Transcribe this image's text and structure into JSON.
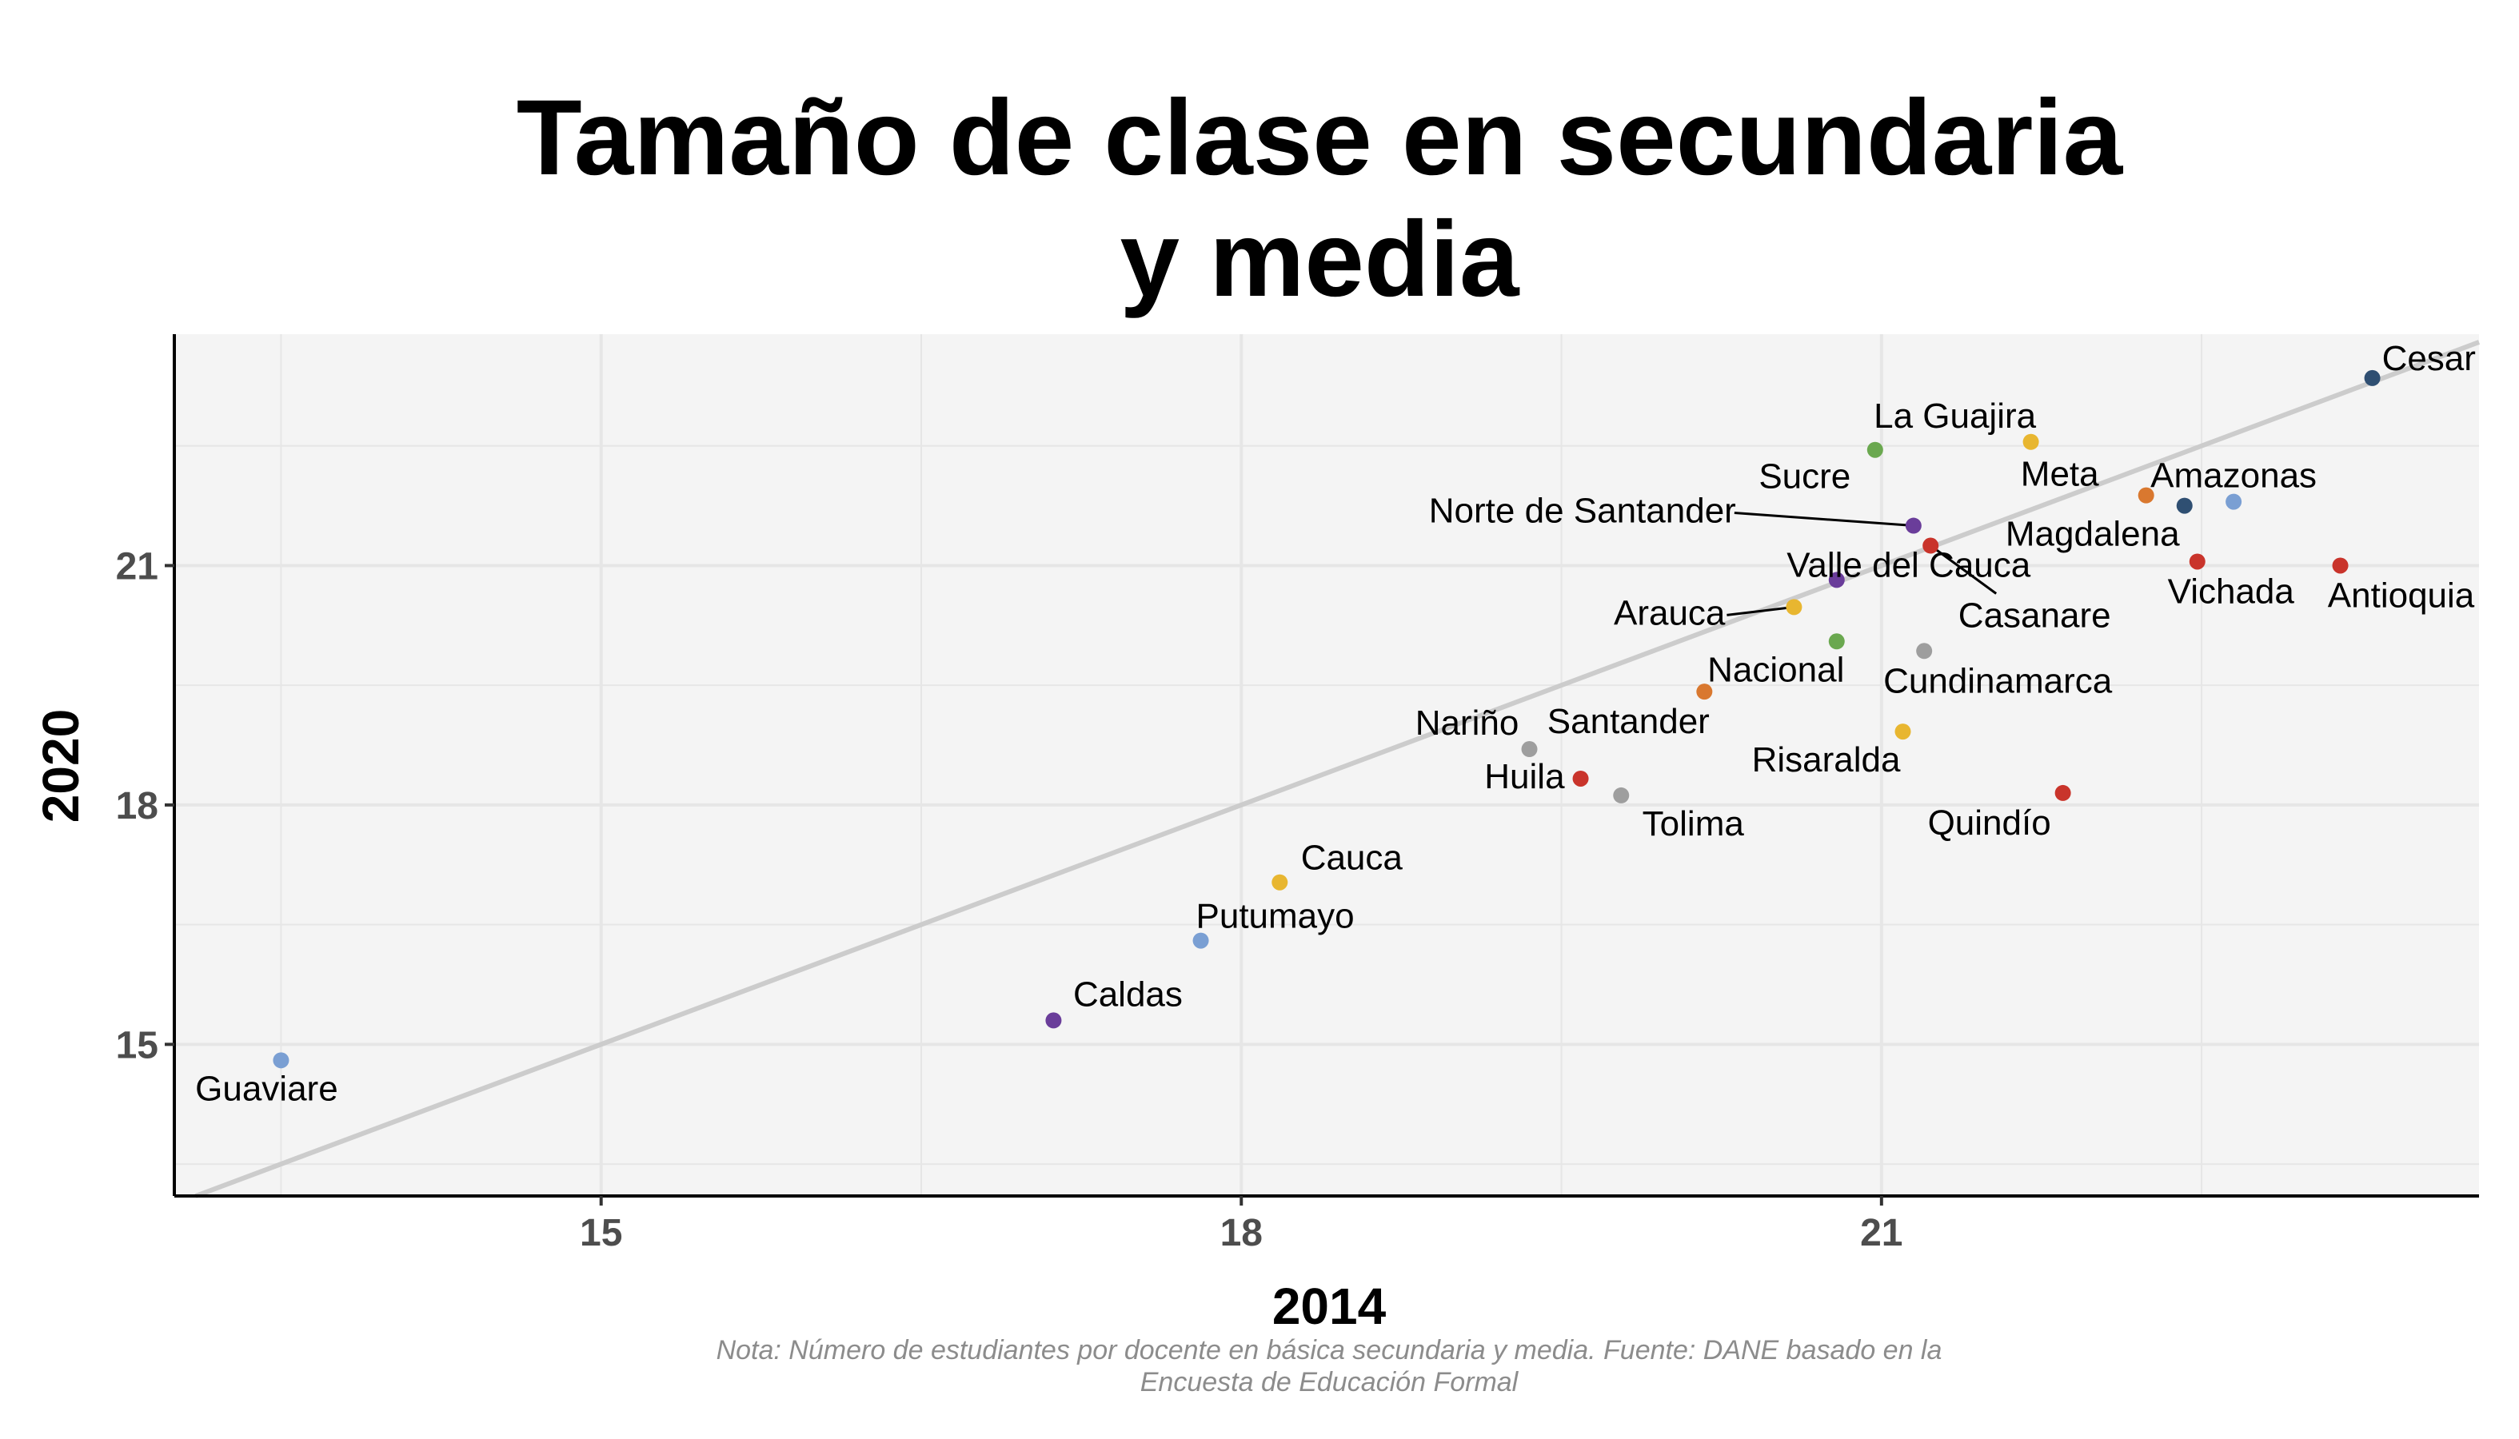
{
  "chart_data": {
    "type": "scatter",
    "title_lines": [
      "Tamaño de clase en secundaria",
      "y media"
    ],
    "xlabel": "2014",
    "ylabel": "2020",
    "xlim": [
      13,
      23.8
    ],
    "ylim": [
      13.1,
      23.9
    ],
    "x_ticks": [
      15,
      18,
      21
    ],
    "y_ticks": [
      15,
      18,
      21
    ],
    "grid": true,
    "reference_line": "y = x",
    "note_lines": [
      "Nota: Número de estudiantes por docente en básica secundaria y media. Fuente: DANE basado en la",
      "Encuesta de Educación Formal"
    ],
    "colors": {
      "panel_background": "#f4f4f4",
      "gridline": "#e6e6e6",
      "reference_line": "#cccccc",
      "blue": "#7a9fd3",
      "purple": "#6a3d9a",
      "yellow": "#e8b630",
      "gray": "#9e9e9e",
      "red": "#c9342b",
      "orange": "#d9782f",
      "green": "#6aa84f",
      "navy": "#2f4f72"
    },
    "points": [
      {
        "label": "Cesar",
        "x": 23.3,
        "y": 23.35,
        "color": "navy"
      },
      {
        "label": "La Guajira",
        "x": 21.7,
        "y": 22.55,
        "color": "yellow"
      },
      {
        "label": "Sucre",
        "x": 20.97,
        "y": 22.45,
        "color": "green"
      },
      {
        "label": "Meta",
        "x": 22.24,
        "y": 21.88,
        "color": "orange"
      },
      {
        "label": "Amazonas",
        "x": 22.65,
        "y": 21.8,
        "color": "blue"
      },
      {
        "label": "Magdalena",
        "x": 22.42,
        "y": 21.75,
        "color": "navy"
      },
      {
        "label": "Norte de Santander",
        "x": 21.15,
        "y": 21.5,
        "color": "purple"
      },
      {
        "label": "Casanare",
        "x": 21.23,
        "y": 21.25,
        "color": "red"
      },
      {
        "label": "Vichada",
        "x": 22.48,
        "y": 21.05,
        "color": "red"
      },
      {
        "label": "Antioquia",
        "x": 23.15,
        "y": 21.0,
        "color": "red"
      },
      {
        "label": "Valle del Cauca",
        "x": 20.79,
        "y": 20.82,
        "color": "purple"
      },
      {
        "label": "Arauca",
        "x": 20.59,
        "y": 20.48,
        "color": "yellow"
      },
      {
        "label": "Nacional",
        "x": 20.79,
        "y": 20.05,
        "color": "green"
      },
      {
        "label": "Cundinamarca",
        "x": 21.2,
        "y": 19.93,
        "color": "gray"
      },
      {
        "label": "Santander",
        "x": 20.17,
        "y": 19.42,
        "color": "orange"
      },
      {
        "label": "Risaralda",
        "x": 21.1,
        "y": 18.92,
        "color": "yellow"
      },
      {
        "label": "Nariño",
        "x": 19.35,
        "y": 18.7,
        "color": "gray"
      },
      {
        "label": "Huila",
        "x": 19.59,
        "y": 18.33,
        "color": "red"
      },
      {
        "label": "Tolima",
        "x": 19.78,
        "y": 18.12,
        "color": "gray"
      },
      {
        "label": "Quindío",
        "x": 21.85,
        "y": 18.15,
        "color": "red"
      },
      {
        "label": "Cauca",
        "x": 18.18,
        "y": 17.03,
        "color": "yellow"
      },
      {
        "label": "Putumayo",
        "x": 17.81,
        "y": 16.3,
        "color": "blue"
      },
      {
        "label": "Caldas",
        "x": 17.12,
        "y": 15.3,
        "color": "purple"
      },
      {
        "label": "Guaviare",
        "x": 13.5,
        "y": 14.8,
        "color": "blue"
      }
    ]
  }
}
